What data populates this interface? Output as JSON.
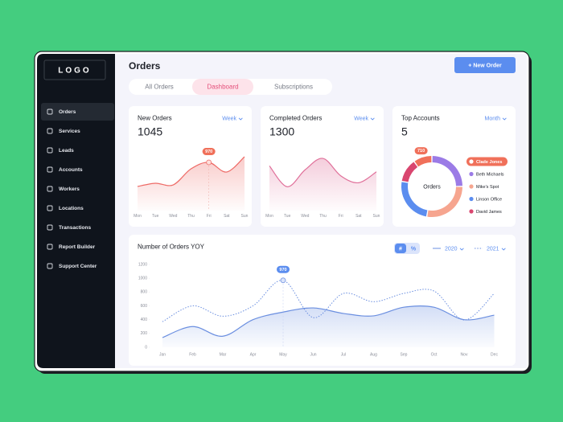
{
  "sidebar": {
    "logo": "LOGO",
    "nav": [
      "Orders",
      "Services",
      "Leads",
      "Accounts",
      "Workers",
      "Locations",
      "Transactions",
      "Report Builder",
      "Support Center"
    ]
  },
  "header": {
    "title": "Orders",
    "button": "+ New Order"
  },
  "tabs": [
    "All Orders",
    "Dashboard",
    "Subscriptions"
  ],
  "chart_data": [
    {
      "type": "area",
      "title": "New Orders",
      "period": "Week",
      "total": 1045,
      "color": "#ee6b67",
      "categories": [
        "Mon",
        "Tue",
        "Wed",
        "Thu",
        "Fri",
        "Sat",
        "Sun"
      ],
      "values": [
        485,
        550,
        517,
        840,
        970,
        776,
        1083
      ]
    },
    {
      "type": "area",
      "title": "Completed Orders",
      "period": "Week",
      "total": 1300,
      "color": "#e0709a",
      "categories": [
        "Mon",
        "Tue",
        "Wed",
        "Thu",
        "Fri",
        "Sat",
        "Sun"
      ],
      "values": [
        900,
        480,
        820,
        1050,
        700,
        560,
        780
      ]
    },
    {
      "type": "pie",
      "title": "Top Accounts",
      "period": "Month",
      "total": 5,
      "center_label": "Orders",
      "categories": [
        "Clade Jones",
        "Beth Michaels",
        "Mike's Spot",
        "Linson Office",
        "David James"
      ],
      "values": [
        710,
        1800,
        2000,
        1800,
        900
      ],
      "colors": [
        "#f0705a",
        "#9b7be6",
        "#f6a58f",
        "#5b8def",
        "#d9466f"
      ]
    },
    {
      "type": "line",
      "title": "Number of Orders YOY",
      "toggle": [
        "#",
        "%"
      ],
      "categories": [
        "Jan",
        "Feb",
        "Mar",
        "Apr",
        "May",
        "Jun",
        "Jul",
        "Aug",
        "Sep",
        "Oct",
        "Nov",
        "Dec"
      ],
      "series": [
        {
          "name": "2020",
          "color": "#6b8fe0",
          "style": "solid",
          "values": [
            140,
            300,
            160,
            400,
            510,
            570,
            490,
            455,
            580,
            580,
            400,
            465
          ]
        },
        {
          "name": "2021",
          "color": "#6b8fe0",
          "style": "dotted",
          "values": [
            370,
            600,
            450,
            600,
            970,
            430,
            780,
            660,
            780,
            815,
            395,
            780
          ]
        }
      ],
      "ylim": [
        0,
        1200
      ],
      "yticks": [
        0,
        200,
        400,
        600,
        800,
        1000,
        1200
      ]
    }
  ]
}
